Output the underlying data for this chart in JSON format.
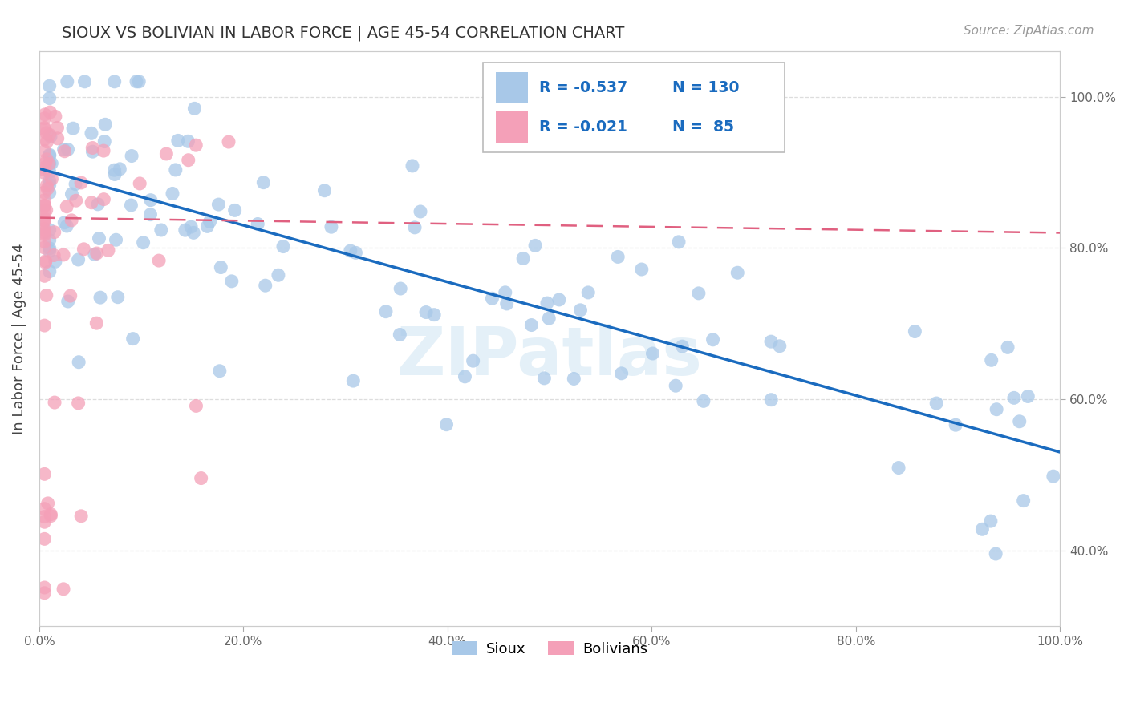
{
  "title": "SIOUX VS BOLIVIAN IN LABOR FORCE | AGE 45-54 CORRELATION CHART",
  "source_text": "Source: ZipAtlas.com",
  "ylabel": "In Labor Force | Age 45-54",
  "sioux_color": "#a8c8e8",
  "bolivian_color": "#f4a0b8",
  "trend_sioux_color": "#1a6bbf",
  "trend_bolivian_color": "#e06080",
  "R_sioux": -0.537,
  "N_sioux": 130,
  "R_bolivian": -0.021,
  "N_bolivian": 85,
  "xlim": [
    0.0,
    1.0
  ],
  "ylim": [
    0.3,
    1.06
  ],
  "ytick_positions": [
    0.4,
    0.6,
    0.8,
    1.0
  ],
  "ytick_labels": [
    "40.0%",
    "60.0%",
    "80.0%",
    "100.0%"
  ],
  "xtick_positions": [
    0.0,
    0.2,
    0.4,
    0.6,
    0.8,
    1.0
  ],
  "xtick_labels": [
    "0.0%",
    "20.0%",
    "40.0%",
    "60.0%",
    "80.0%",
    "100.0%"
  ],
  "legend_labels": [
    "Sioux",
    "Bolivians"
  ],
  "watermark": "ZIPatlas",
  "background_color": "#ffffff",
  "grid_color": "#dddddd",
  "sioux_trend_y0": 0.905,
  "sioux_trend_y1": 0.53,
  "bolivian_trend_y0": 0.84,
  "bolivian_trend_y1": 0.82
}
